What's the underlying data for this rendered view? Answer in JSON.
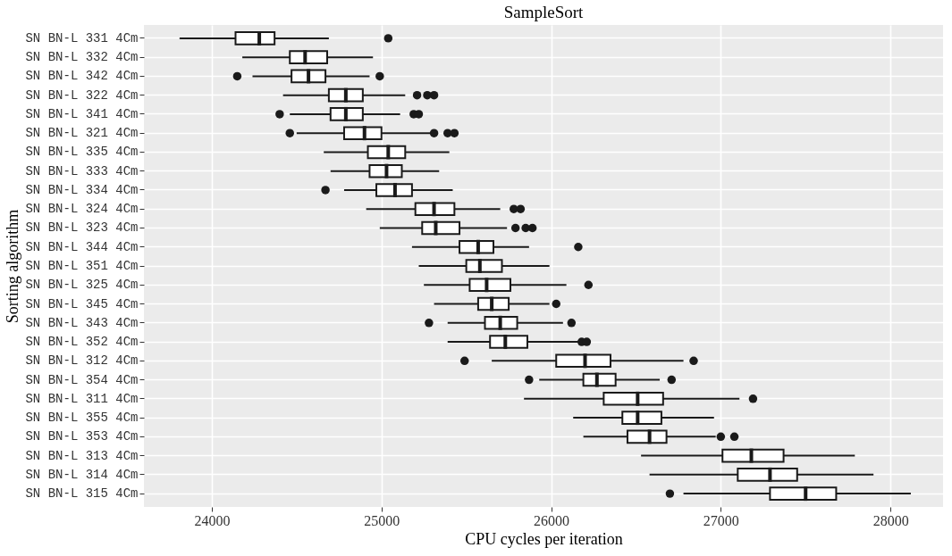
{
  "chart_data": {
    "type": "box",
    "orientation": "horizontal",
    "title": "SampleSort",
    "xlabel": "CPU cycles per iteration",
    "ylabel": "Sorting algorithm",
    "categories": [
      "SN BN-L 331 4Cm",
      "SN BN-L 332 4Cm",
      "SN BN-L 342 4Cm",
      "SN BN-L 322 4Cm",
      "SN BN-L 341 4Cm",
      "SN BN-L 321 4Cm",
      "SN BN-L 335 4Cm",
      "SN BN-L 333 4Cm",
      "SN BN-L 334 4Cm",
      "SN BN-L 324 4Cm",
      "SN BN-L 323 4Cm",
      "SN BN-L 344 4Cm",
      "SN BN-L 351 4Cm",
      "SN BN-L 325 4Cm",
      "SN BN-L 345 4Cm",
      "SN BN-L 343 4Cm",
      "SN BN-L 352 4Cm",
      "SN BN-L 312 4Cm",
      "SN BN-L 354 4Cm",
      "SN BN-L 311 4Cm",
      "SN BN-L 355 4Cm",
      "SN BN-L 353 4Cm",
      "SN BN-L 313 4Cm",
      "SN BN-L 314 4Cm",
      "SN BN-L 315 4Cm"
    ],
    "boxes": [
      {
        "low": 23810,
        "q1": 24140,
        "median": 24280,
        "q3": 24370,
        "high": 24690,
        "outliers": [
          25040
        ]
      },
      {
        "low": 24180,
        "q1": 24460,
        "median": 24550,
        "q3": 24680,
        "high": 24950
      },
      {
        "low": 24240,
        "q1": 24470,
        "median": 24570,
        "q3": 24670,
        "high": 24930,
        "outliers": [
          24150,
          24990
        ]
      },
      {
        "low": 24420,
        "q1": 24690,
        "median": 24790,
        "q3": 24890,
        "high": 25140,
        "outliers": [
          25210,
          25270,
          25310
        ]
      },
      {
        "low": 24460,
        "q1": 24700,
        "median": 24790,
        "q3": 24890,
        "high": 25110,
        "outliers": [
          24400,
          25190,
          25220
        ]
      },
      {
        "low": 24500,
        "q1": 24780,
        "median": 24900,
        "q3": 25000,
        "high": 25300,
        "outliers": [
          24460,
          25310,
          25390,
          25430
        ]
      },
      {
        "low": 24660,
        "q1": 24920,
        "median": 25040,
        "q3": 25140,
        "high": 25400
      },
      {
        "low": 24700,
        "q1": 24930,
        "median": 25030,
        "q3": 25120,
        "high": 25340
      },
      {
        "low": 24780,
        "q1": 24970,
        "median": 25080,
        "q3": 25180,
        "high": 25420,
        "outliers": [
          24670
        ]
      },
      {
        "low": 24910,
        "q1": 25200,
        "median": 25310,
        "q3": 25430,
        "high": 25700,
        "outliers": [
          25780,
          25820
        ]
      },
      {
        "low": 24990,
        "q1": 25240,
        "median": 25320,
        "q3": 25460,
        "high": 25740,
        "outliers": [
          25790,
          25850,
          25890
        ]
      },
      {
        "low": 25180,
        "q1": 25460,
        "median": 25570,
        "q3": 25660,
        "high": 25870,
        "outliers": [
          26160
        ]
      },
      {
        "low": 25220,
        "q1": 25500,
        "median": 25580,
        "q3": 25710,
        "high": 25990
      },
      {
        "low": 25250,
        "q1": 25520,
        "median": 25620,
        "q3": 25760,
        "high": 26090,
        "outliers": [
          26220
        ]
      },
      {
        "low": 25310,
        "q1": 25570,
        "median": 25650,
        "q3": 25750,
        "high": 25990,
        "outliers": [
          26030
        ]
      },
      {
        "low": 25390,
        "q1": 25610,
        "median": 25700,
        "q3": 25800,
        "high": 26070,
        "outliers": [
          25280,
          26120
        ]
      },
      {
        "low": 25390,
        "q1": 25640,
        "median": 25730,
        "q3": 25860,
        "high": 26160,
        "outliers": [
          26180,
          26210
        ]
      },
      {
        "low": 25650,
        "q1": 26030,
        "median": 26200,
        "q3": 26350,
        "high": 26780,
        "outliers": [
          25490,
          26840
        ]
      },
      {
        "low": 25930,
        "q1": 26190,
        "median": 26270,
        "q3": 26380,
        "high": 26640,
        "outliers": [
          25870,
          26710
        ]
      },
      {
        "low": 25840,
        "q1": 26310,
        "median": 26510,
        "q3": 26660,
        "high": 27110,
        "outliers": [
          27190
        ]
      },
      {
        "low": 26130,
        "q1": 26420,
        "median": 26510,
        "q3": 26650,
        "high": 26960
      },
      {
        "low": 26190,
        "q1": 26450,
        "median": 26580,
        "q3": 26680,
        "high": 26970,
        "outliers": [
          27000,
          27080
        ]
      },
      {
        "low": 26530,
        "q1": 27010,
        "median": 27180,
        "q3": 27370,
        "high": 27790
      },
      {
        "low": 26580,
        "q1": 27100,
        "median": 27290,
        "q3": 27450,
        "high": 27900
      },
      {
        "low": 26780,
        "q1": 27290,
        "median": 27500,
        "q3": 27680,
        "high": 28120,
        "outliers": [
          26700
        ]
      }
    ],
    "xlim": [
      23600,
      28310
    ],
    "xticks": [
      24000,
      25000,
      26000,
      27000,
      28000
    ],
    "grid": true
  }
}
